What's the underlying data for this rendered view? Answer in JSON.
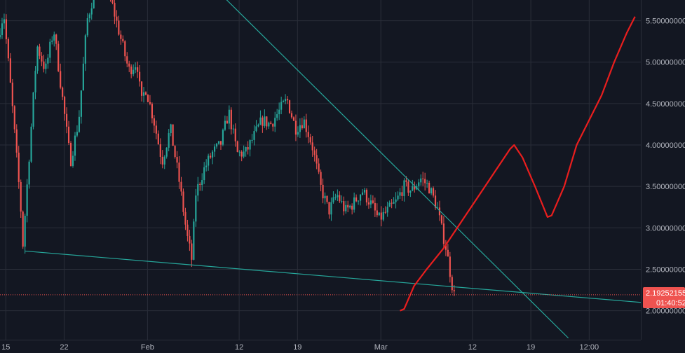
{
  "chart_data": {
    "type": "candlestick",
    "x_ticks": [
      {
        "label": "15",
        "day": 15
      },
      {
        "label": "22",
        "day": 22
      },
      {
        "label": "Feb",
        "day": 32
      },
      {
        "label": "12",
        "day": 43
      },
      {
        "label": "19",
        "day": 50
      },
      {
        "label": "Mar",
        "day": 60
      },
      {
        "label": "12",
        "day": 71
      },
      {
        "label": "19",
        "day": 78
      },
      {
        "label": "12:00",
        "day": 85
      }
    ],
    "y_ticks": [
      {
        "label": "2.00000000",
        "value": 2.0
      },
      {
        "label": "2.50000000",
        "value": 2.5
      },
      {
        "label": "3.00000000",
        "value": 3.0
      },
      {
        "label": "3.50000000",
        "value": 3.5
      },
      {
        "label": "4.00000000",
        "value": 4.0
      },
      {
        "label": "4.50000000",
        "value": 4.5
      },
      {
        "label": "5.00000000",
        "value": 5.0
      },
      {
        "label": "5.50000000",
        "value": 5.5
      }
    ],
    "ylim": [
      1.65,
      5.75
    ],
    "xlim": [
      14.3,
      91.2
    ],
    "current_price": {
      "value": 2.19252155,
      "label": "2.19252155",
      "countdown": "01:40:52"
    },
    "trendlines": [
      {
        "name": "support",
        "points": [
          [
            17.3,
            2.72
          ],
          [
            91.2,
            2.1
          ]
        ]
      },
      {
        "name": "resistance",
        "points": [
          [
            39,
            6.0
          ],
          [
            82.5,
            1.67
          ]
        ]
      }
    ],
    "projection": [
      [
        62.3,
        2.0
      ],
      [
        62.8,
        2.02
      ],
      [
        64,
        2.3
      ],
      [
        65.5,
        2.5
      ],
      [
        67.5,
        2.75
      ],
      [
        69.5,
        3.05
      ],
      [
        71.5,
        3.35
      ],
      [
        73.5,
        3.65
      ],
      [
        75.5,
        3.95
      ],
      [
        76,
        4.0
      ],
      [
        77,
        3.85
      ],
      [
        78.5,
        3.5
      ],
      [
        80,
        3.13
      ],
      [
        80.5,
        3.15
      ],
      [
        82,
        3.5
      ],
      [
        83.5,
        4.0
      ],
      [
        85,
        4.3
      ],
      [
        86.5,
        4.6
      ],
      [
        88,
        5.0
      ],
      [
        89.5,
        5.35
      ],
      [
        90.5,
        5.55
      ]
    ],
    "series_key_points": [
      [
        14.3,
        5.3
      ],
      [
        15,
        5.6
      ],
      [
        16,
        4.5
      ],
      [
        17,
        3.3
      ],
      [
        17.3,
        2.8
      ],
      [
        18,
        3.8
      ],
      [
        19,
        5.2
      ],
      [
        20,
        4.9
      ],
      [
        21,
        5.4
      ],
      [
        22,
        4.6
      ],
      [
        23,
        3.8
      ],
      [
        24,
        4.3
      ],
      [
        25,
        5.5
      ],
      [
        26,
        5.9
      ],
      [
        27,
        5.9
      ],
      [
        28,
        5.7
      ],
      [
        29,
        5.3
      ],
      [
        30,
        4.9
      ],
      [
        31,
        5.0
      ],
      [
        31.5,
        4.5
      ],
      [
        32,
        4.7
      ],
      [
        33,
        4.3
      ],
      [
        34,
        3.8
      ],
      [
        35,
        4.2
      ],
      [
        36,
        3.6
      ],
      [
        37,
        2.9
      ],
      [
        37.6,
        2.6
      ],
      [
        38,
        3.4
      ],
      [
        39,
        3.7
      ],
      [
        40,
        3.9
      ],
      [
        41,
        4.0
      ],
      [
        42,
        4.4
      ],
      [
        43,
        3.9
      ],
      [
        44,
        3.9
      ],
      [
        45,
        4.1
      ],
      [
        46,
        4.3
      ],
      [
        47,
        4.25
      ],
      [
        48,
        4.4
      ],
      [
        49,
        4.55
      ],
      [
        50,
        4.2
      ],
      [
        51,
        4.3
      ],
      [
        52,
        4.0
      ],
      [
        53,
        3.5
      ],
      [
        54,
        3.2
      ],
      [
        55,
        3.4
      ],
      [
        56,
        3.2
      ],
      [
        57,
        3.3
      ],
      [
        58,
        3.45
      ],
      [
        59,
        3.3
      ],
      [
        60,
        3.1
      ],
      [
        61,
        3.2
      ],
      [
        62,
        3.3
      ],
      [
        63,
        3.5
      ],
      [
        64,
        3.45
      ],
      [
        65,
        3.6
      ],
      [
        66,
        3.5
      ],
      [
        67,
        3.25
      ],
      [
        67.5,
        3.0
      ],
      [
        68,
        2.8
      ],
      [
        68.5,
        2.5
      ],
      [
        69,
        2.19
      ]
    ],
    "colors": {
      "background": "#131722",
      "grid": "#2a2e39",
      "up": "#26a69a",
      "down": "#ef5350",
      "trendline": "#26a69a",
      "projection": "#e91e1e",
      "price_line": "#ef5350",
      "axis_text": "#b2b5be"
    }
  }
}
